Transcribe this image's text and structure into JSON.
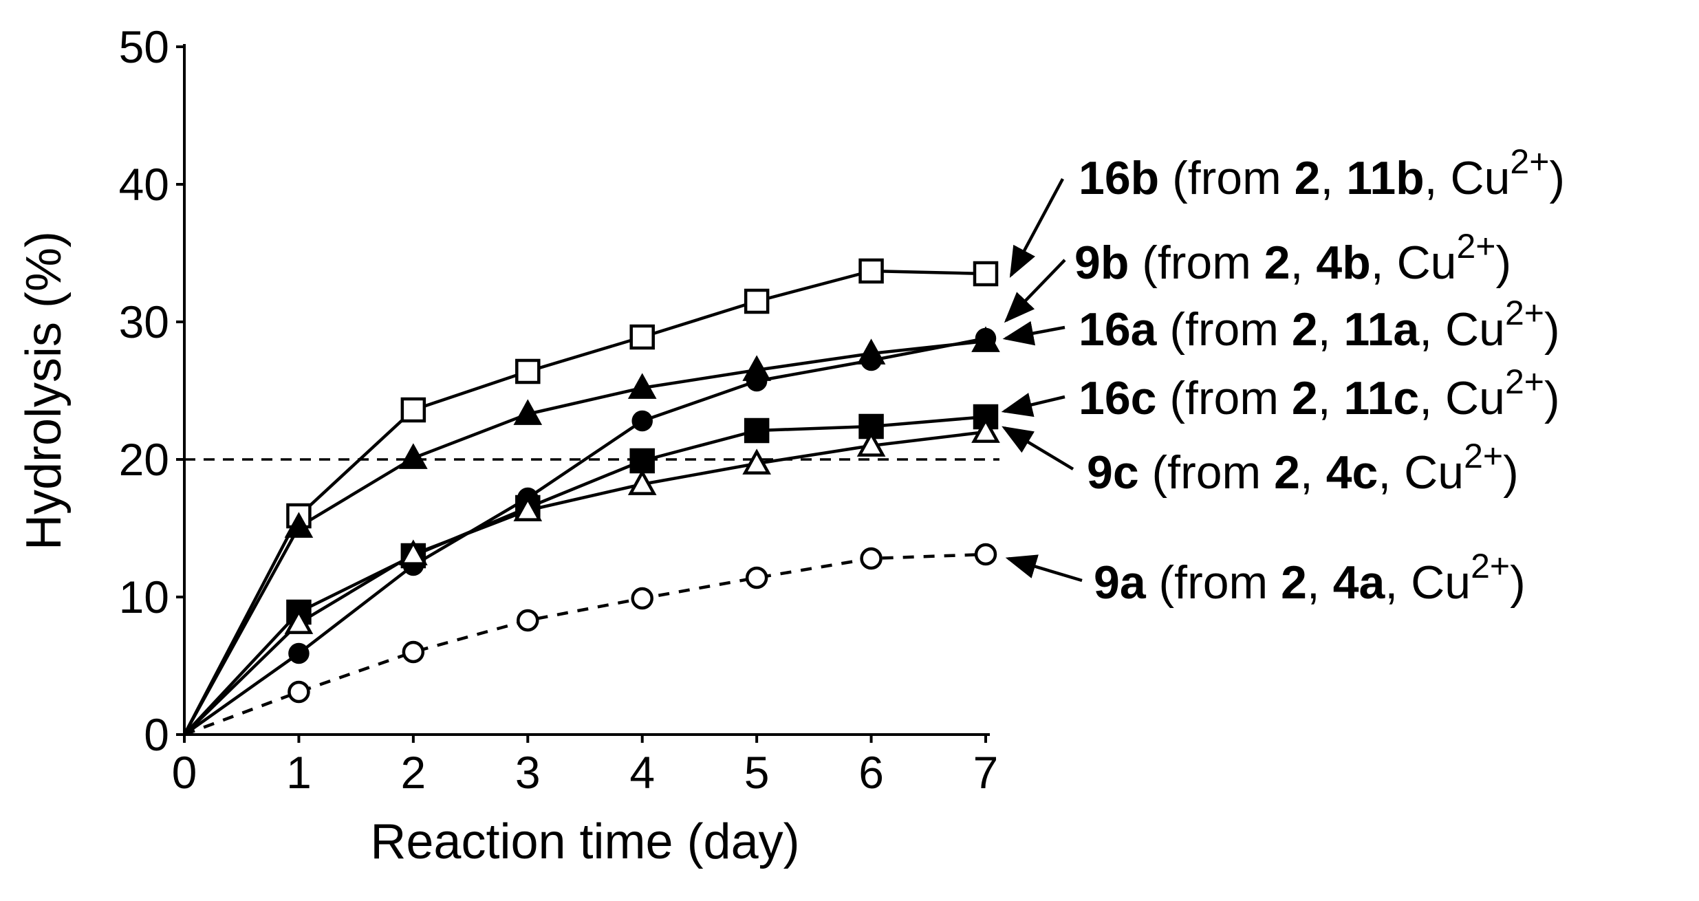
{
  "chart_data": {
    "type": "line",
    "title": "",
    "xlabel": "Reaction time (day)",
    "ylabel": "Hydrolysis (%)",
    "xlim": [
      0,
      7
    ],
    "ylim": [
      0,
      50
    ],
    "xticks": [
      0,
      1,
      2,
      3,
      4,
      5,
      6,
      7
    ],
    "yticks": [
      0,
      10,
      20,
      30,
      40,
      50
    ],
    "grid": false,
    "reference_line": {
      "y": 20,
      "style": "dashed"
    },
    "x": [
      0,
      1,
      2,
      3,
      4,
      5,
      6,
      7
    ],
    "series": [
      {
        "name": "16b",
        "marker": "square-open",
        "dashed": false,
        "values": [
          0,
          15.9,
          23.6,
          26.4,
          28.9,
          31.5,
          33.7,
          33.5
        ],
        "label_parts": [
          [
            "16b",
            true
          ],
          [
            " (from ",
            false
          ],
          [
            "2",
            true
          ],
          [
            ", ",
            false
          ],
          [
            "11b",
            true
          ],
          [
            ", Cu",
            false
          ]
        ]
      },
      {
        "name": "9b",
        "marker": "circle-filled",
        "dashed": false,
        "values": [
          0,
          5.9,
          12.3,
          17.2,
          22.8,
          25.7,
          27.2,
          28.8
        ],
        "label_parts": [
          [
            "9b",
            true
          ],
          [
            " (from ",
            false
          ],
          [
            "2",
            true
          ],
          [
            ", ",
            false
          ],
          [
            "4b",
            true
          ],
          [
            ", Cu",
            false
          ]
        ]
      },
      {
        "name": "16a",
        "marker": "triangle-filled",
        "dashed": false,
        "values": [
          0,
          15.1,
          20.1,
          23.3,
          25.2,
          26.5,
          27.7,
          28.6
        ],
        "label_parts": [
          [
            "16a",
            true
          ],
          [
            " (from ",
            false
          ],
          [
            "2",
            true
          ],
          [
            ", ",
            false
          ],
          [
            "11a",
            true
          ],
          [
            ", Cu",
            false
          ]
        ]
      },
      {
        "name": "16c",
        "marker": "square-filled",
        "dashed": false,
        "values": [
          0,
          8.9,
          13.0,
          16.5,
          19.9,
          22.1,
          22.4,
          23.1
        ],
        "label_parts": [
          [
            "16c",
            true
          ],
          [
            " (from ",
            false
          ],
          [
            "2",
            true
          ],
          [
            ", ",
            false
          ],
          [
            "11c",
            true
          ],
          [
            ", Cu",
            false
          ]
        ]
      },
      {
        "name": "9c",
        "marker": "triangle-open",
        "dashed": false,
        "values": [
          0,
          8.1,
          13.1,
          16.3,
          18.2,
          19.7,
          21.0,
          22.0
        ],
        "label_parts": [
          [
            "9c",
            true
          ],
          [
            " (from ",
            false
          ],
          [
            "2",
            true
          ],
          [
            ", ",
            false
          ],
          [
            "4c",
            true
          ],
          [
            ", Cu",
            false
          ]
        ]
      },
      {
        "name": "9a",
        "marker": "circle-open",
        "dashed": true,
        "values": [
          0,
          3.1,
          6.0,
          8.3,
          9.9,
          11.4,
          12.8,
          13.1
        ],
        "label_parts": [
          [
            "9a",
            true
          ],
          [
            " (from ",
            false
          ],
          [
            "2",
            true
          ],
          [
            ", ",
            false
          ],
          [
            "4a",
            true
          ],
          [
            ", Cu",
            false
          ]
        ]
      }
    ],
    "superscript": "2+",
    "close_paren": ")"
  }
}
